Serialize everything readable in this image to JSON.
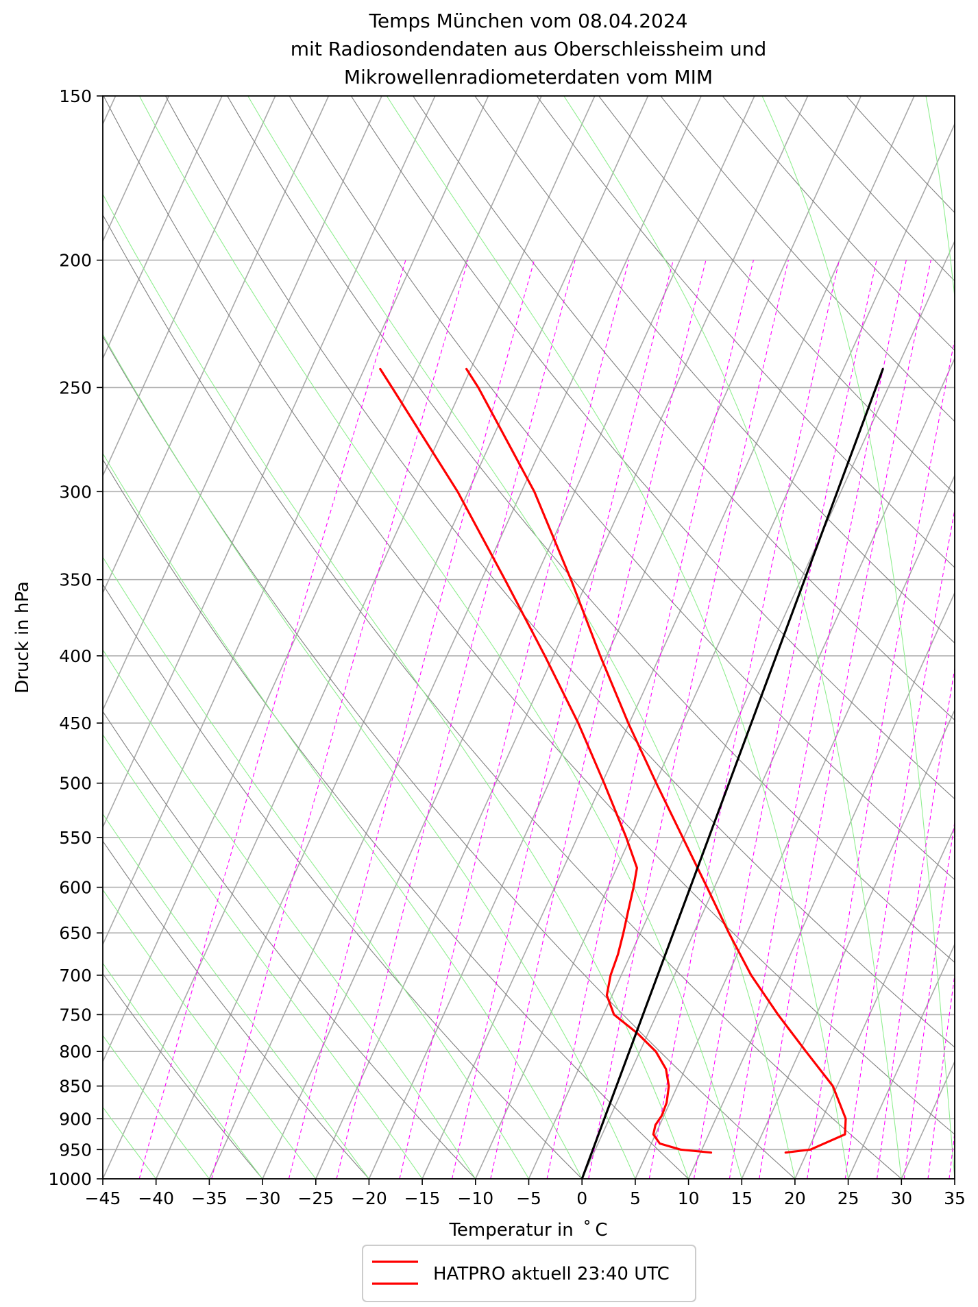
{
  "chart_data": {
    "type": "line",
    "title_lines": [
      "Temps München vom 08.04.2024",
      "mit Radiosondendaten aus Oberschleissheim und",
      "Mikrowellenradiometerdaten vom MIM"
    ],
    "xlabel": "Temperatur in $^\\circ$C",
    "xlabel_display": "Temperatur in  ˚ C",
    "ylabel": "Druck in hPa",
    "xlim": [
      -45,
      35
    ],
    "ylim": [
      1000,
      150
    ],
    "y_scale": "log",
    "skew": 1.0,
    "x_ticks": [
      "−45",
      "−40",
      "−35",
      "−30",
      "−25",
      "−20",
      "−15",
      "−10",
      "−5",
      "0",
      "5",
      "10",
      "15",
      "20",
      "25",
      "30",
      "35"
    ],
    "x_tick_values": [
      -45,
      -40,
      -35,
      -30,
      -25,
      -20,
      -15,
      -10,
      -5,
      0,
      5,
      10,
      15,
      20,
      25,
      30,
      35
    ],
    "y_ticks": [
      1000,
      950,
      900,
      850,
      800,
      750,
      700,
      650,
      600,
      550,
      500,
      450,
      400,
      350,
      300,
      250,
      200,
      150
    ],
    "grid": "horizontal",
    "legend": {
      "placement": "bottom-center",
      "entries": [
        {
          "label": "HATPRO aktuell 23:40 UTC",
          "color": "#ff0000"
        }
      ]
    },
    "series": [
      {
        "name": "HATPRO aktuell 23:40 UTC",
        "color": "#ff0000",
        "points": [
          [
            955,
            11
          ],
          [
            950,
            8
          ],
          [
            940,
            5.8
          ],
          [
            925,
            4.8
          ],
          [
            910,
            4.6
          ],
          [
            895,
            4.8
          ],
          [
            875,
            4.7
          ],
          [
            850,
            4.2
          ],
          [
            825,
            3.2
          ],
          [
            800,
            1.5
          ],
          [
            775,
            -1
          ],
          [
            750,
            -4
          ],
          [
            725,
            -5.5
          ],
          [
            700,
            -6
          ],
          [
            675,
            -6.2
          ],
          [
            650,
            -6.6
          ],
          [
            625,
            -7.1
          ],
          [
            600,
            -7.6
          ],
          [
            580,
            -8.1
          ],
          [
            550,
            -10.4
          ],
          [
            500,
            -14.8
          ],
          [
            450,
            -19.8
          ],
          [
            400,
            -25.8
          ],
          [
            350,
            -32.8
          ],
          [
            300,
            -41
          ],
          [
            250,
            -51.6
          ],
          [
            242,
            -53.5
          ]
        ]
      },
      {
        "name": "",
        "color": "#ff0000",
        "points": [
          [
            955,
            18
          ],
          [
            950,
            20.2
          ],
          [
            925,
            22.8
          ],
          [
            900,
            22.2
          ],
          [
            850,
            19.6
          ],
          [
            800,
            15.6
          ],
          [
            750,
            11.4
          ],
          [
            700,
            7.2
          ],
          [
            650,
            3.3
          ],
          [
            600,
            -0.7
          ],
          [
            550,
            -5.1
          ],
          [
            500,
            -9.9
          ],
          [
            450,
            -15.1
          ],
          [
            400,
            -20.6
          ],
          [
            350,
            -26.6
          ],
          [
            300,
            -33.8
          ],
          [
            250,
            -43.5
          ],
          [
            242,
            -45.4
          ]
        ]
      },
      {
        "name": "",
        "color": "#000000",
        "points": [
          [
            1000,
            0
          ],
          [
            242,
            -6.3
          ]
        ]
      }
    ],
    "background_lines": {
      "isotherm_color": "#a9a9a9",
      "dry_adiabat_color": "#808080",
      "moist_adiabat_color": "#90ee90",
      "mixing_ratio_color": "#ff00ff"
    }
  }
}
